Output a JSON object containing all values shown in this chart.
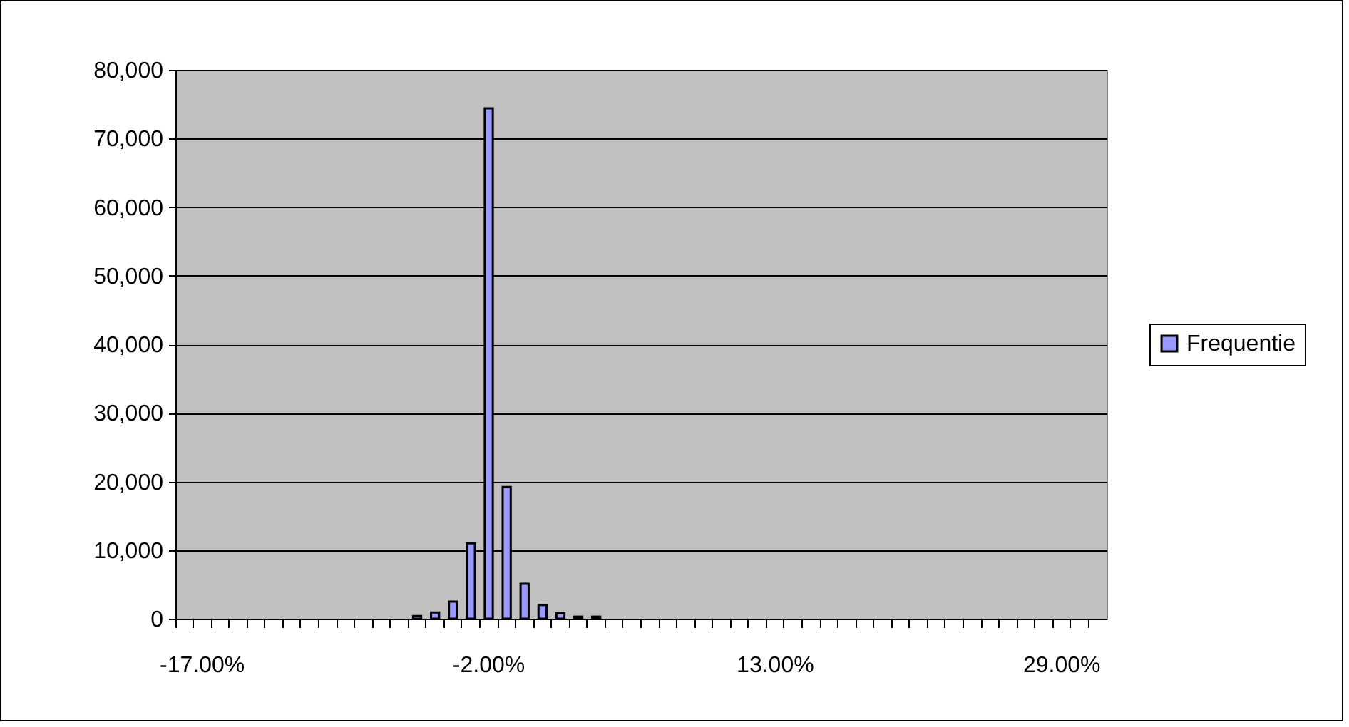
{
  "chart_data": {
    "type": "bar",
    "categories": [
      null,
      "-17.00%",
      null,
      null,
      null,
      null,
      null,
      null,
      null,
      null,
      null,
      null,
      null,
      null,
      null,
      null,
      null,
      "-2.00%",
      null,
      null,
      null,
      null,
      null,
      null,
      null,
      null,
      null,
      null,
      null,
      null,
      null,
      null,
      null,
      "13.00%",
      null,
      null,
      null,
      null,
      null,
      null,
      null,
      null,
      null,
      null,
      null,
      null,
      null,
      null,
      null,
      "29.00%",
      null,
      null
    ],
    "series": [
      {
        "name": "Frequentie",
        "color": "#9999ff",
        "values": [
          null,
          null,
          null,
          null,
          null,
          null,
          null,
          null,
          null,
          null,
          null,
          null,
          null,
          400,
          900,
          2500,
          11000,
          74400,
          19200,
          5100,
          2000,
          800,
          300,
          300,
          null,
          null,
          null,
          null,
          null,
          null,
          null,
          null,
          null,
          null,
          null,
          null,
          null,
          null,
          null,
          null,
          null,
          null,
          null,
          null,
          null,
          null,
          null,
          null,
          null,
          null,
          null,
          null
        ]
      }
    ],
    "ylim": [
      0,
      80000
    ],
    "yticks": [
      0,
      {
        "value": 10000,
        "label": "10,000"
      },
      {
        "value": 20000,
        "label": "20,000"
      },
      {
        "value": 30000,
        "label": "30,000"
      },
      {
        "value": 40000,
        "label": "40,000"
      },
      {
        "value": 50000,
        "label": "50,000"
      },
      {
        "value": 60000,
        "label": "60,000"
      },
      {
        "value": 70000,
        "label": "70,000"
      },
      {
        "value": 80000,
        "label": "80,000"
      }
    ],
    "grid": "y",
    "legend": "right"
  }
}
